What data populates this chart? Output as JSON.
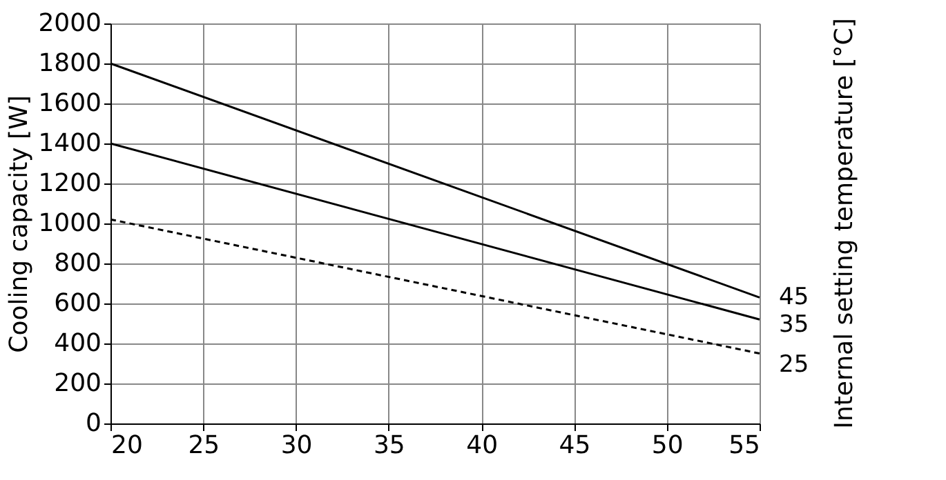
{
  "chart_data": {
    "type": "line",
    "xlabel": null,
    "ylabel": "Cooling capacity [W]",
    "legend_title": "Internal setting temperature [°C]",
    "x": [
      20,
      55
    ],
    "xlim": [
      20,
      55
    ],
    "xticks": [
      20,
      25,
      30,
      35,
      40,
      45,
      50,
      55
    ],
    "ylim": [
      0,
      2000
    ],
    "yticks": [
      0,
      200,
      400,
      600,
      800,
      1000,
      1200,
      1400,
      1600,
      1800,
      2000
    ],
    "grid": true,
    "legend": "right",
    "series": [
      {
        "name": "45",
        "color": "#000000",
        "values": [
          1800,
          630
        ],
        "line_style": "solid"
      },
      {
        "name": "35",
        "color": "#000000",
        "values": [
          1400,
          520
        ],
        "line_style": "solid"
      },
      {
        "name": "25",
        "color": "#000000",
        "values": [
          1020,
          350
        ],
        "line_style": "dashed"
      }
    ]
  }
}
